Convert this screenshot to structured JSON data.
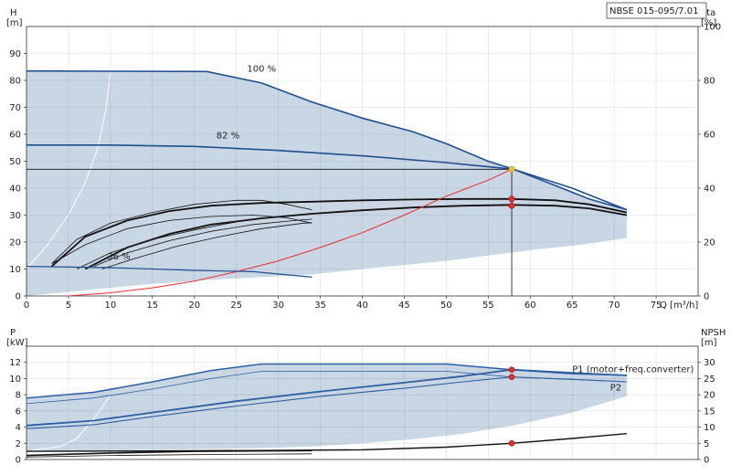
{
  "model_label": "NBSE 015-095/7.01",
  "chart_data": [
    {
      "id": "head",
      "type": "line",
      "xlabel": "Q [m³/h]",
      "ylabel_left": [
        "H",
        "[m]"
      ],
      "ylabel_right": [
        "eta",
        "[%]"
      ],
      "x_ticks": [
        0,
        5,
        10,
        15,
        20,
        25,
        30,
        35,
        40,
        45,
        50,
        55,
        60,
        65,
        70,
        75
      ],
      "y_ticks_left": [
        0,
        10,
        20,
        30,
        40,
        50,
        60,
        70,
        80,
        90
      ],
      "y_ticks_right": [
        0,
        20,
        40,
        60,
        80,
        100
      ],
      "xlim": [
        0,
        80
      ],
      "ylim_left": [
        0,
        100
      ],
      "ylim_right": [
        0,
        100
      ],
      "grid": true,
      "operating_region": {
        "upper": [
          [
            0,
            83.5
          ],
          [
            21.5,
            83.3
          ],
          [
            28,
            79
          ],
          [
            34,
            72
          ],
          [
            40,
            66
          ],
          [
            46,
            61
          ],
          [
            50,
            56.5
          ],
          [
            55,
            50
          ],
          [
            58,
            47
          ],
          [
            63,
            41
          ],
          [
            67,
            36
          ],
          [
            71.5,
            32
          ]
        ],
        "lower": [
          [
            71.5,
            21.5
          ],
          [
            66,
            19
          ],
          [
            60,
            17
          ],
          [
            55,
            15
          ],
          [
            50,
            13
          ],
          [
            45,
            11.5
          ],
          [
            40,
            10
          ],
          [
            34,
            8
          ],
          [
            28,
            7
          ],
          [
            22,
            6
          ],
          [
            15,
            4.5
          ],
          [
            10,
            3
          ],
          [
            5,
            1.5
          ],
          [
            0,
            0
          ]
        ],
        "boundary": [
          [
            10,
            83
          ],
          [
            9.5,
            70
          ],
          [
            8.5,
            55
          ],
          [
            7,
            42
          ],
          [
            5,
            30
          ],
          [
            2.5,
            19
          ],
          [
            0,
            10
          ]
        ]
      },
      "speed_curves": [
        {
          "label": "100 %",
          "points": [
            [
              0,
              83.5
            ],
            [
              21.5,
              83.3
            ],
            [
              28,
              79
            ],
            [
              34,
              72
            ],
            [
              40,
              66
            ],
            [
              46,
              61
            ],
            [
              50,
              56.5
            ],
            [
              55,
              50
            ],
            [
              58,
              47
            ],
            [
              63,
              41
            ],
            [
              67,
              36
            ],
            [
              71.5,
              32
            ]
          ]
        },
        {
          "label": "82 %",
          "points": [
            [
              0,
              56
            ],
            [
              10,
              56
            ],
            [
              20,
              55.5
            ],
            [
              30,
              54
            ],
            [
              40,
              52
            ],
            [
              50,
              49.5
            ],
            [
              58,
              47
            ],
            [
              65,
              40
            ],
            [
              71.5,
              32
            ]
          ]
        },
        {
          "label": "36 %",
          "points": [
            [
              0,
              11
            ],
            [
              10,
              10.5
            ],
            [
              20,
              9.5
            ],
            [
              27,
              9
            ],
            [
              34,
              7
            ]
          ]
        }
      ],
      "duty_line": {
        "H": 47,
        "Q": 57.8
      },
      "system_curve": [
        [
          5,
          0
        ],
        [
          10,
          1.2
        ],
        [
          15,
          3
        ],
        [
          20,
          5.5
        ],
        [
          25,
          9
        ],
        [
          30,
          13
        ],
        [
          35,
          18
        ],
        [
          40,
          23.5
        ],
        [
          45,
          30
        ],
        [
          50,
          37
        ],
        [
          55,
          43
        ],
        [
          57.8,
          47
        ]
      ],
      "efficiency_curves": [
        [
          [
            3,
            11
          ],
          [
            7,
            22
          ],
          [
            12,
            28
          ],
          [
            17,
            31.5
          ],
          [
            22,
            33.5
          ],
          [
            28,
            34.5
          ],
          [
            34,
            35
          ],
          [
            40,
            35.5
          ],
          [
            46,
            35.8
          ],
          [
            52,
            36
          ],
          [
            57.8,
            36
          ],
          [
            63,
            35.5
          ],
          [
            67,
            34
          ],
          [
            71.5,
            31
          ]
        ],
        [
          [
            7,
            10
          ],
          [
            12,
            18
          ],
          [
            17,
            23
          ],
          [
            22,
            26.5
          ],
          [
            28,
            28.8
          ],
          [
            34,
            30.5
          ],
          [
            40,
            31.8
          ],
          [
            46,
            32.8
          ],
          [
            52,
            33.5
          ],
          [
            57.8,
            33.8
          ],
          [
            63,
            33.5
          ],
          [
            67,
            32.5
          ],
          [
            71.5,
            30
          ]
        ],
        [
          [
            6,
            10
          ],
          [
            10,
            16
          ],
          [
            15,
            21
          ],
          [
            20,
            24.5
          ],
          [
            25,
            27.5
          ],
          [
            30,
            29.5
          ],
          [
            34,
            30.5
          ]
        ],
        [
          [
            3,
            12
          ],
          [
            7,
            19
          ],
          [
            12,
            25
          ],
          [
            17,
            28
          ],
          [
            22,
            29.5
          ],
          [
            27,
            30
          ],
          [
            31,
            29
          ],
          [
            34,
            27
          ]
        ],
        [
          [
            3,
            12
          ],
          [
            6,
            21
          ],
          [
            10,
            27
          ],
          [
            15,
            31
          ],
          [
            20,
            34
          ],
          [
            25,
            35.5
          ],
          [
            28,
            35.5
          ],
          [
            31,
            34
          ],
          [
            34,
            32
          ]
        ],
        [
          [
            8,
            11
          ],
          [
            12,
            16
          ],
          [
            17,
            20.5
          ],
          [
            22,
            24
          ],
          [
            27,
            26.5
          ],
          [
            32,
            28
          ],
          [
            34,
            28.5
          ]
        ],
        [
          [
            9,
            10
          ],
          [
            13,
            14
          ],
          [
            18,
            18.5
          ],
          [
            23,
            22
          ],
          [
            28,
            25
          ],
          [
            33,
            27
          ],
          [
            34,
            27.2
          ]
        ]
      ],
      "points": [
        {
          "Q": 57.8,
          "H": 47,
          "color": "#f2c230"
        },
        {
          "Q": 57.8,
          "H": 36,
          "color": "#e53030"
        },
        {
          "Q": 57.8,
          "H": 33.5,
          "color": "#e53030"
        }
      ]
    },
    {
      "id": "power",
      "type": "line",
      "xlabel": "",
      "ylabel_left": [
        "P",
        "[kW]"
      ],
      "ylabel_right": [
        "NPSH",
        "[m]"
      ],
      "y_ticks_left": [
        0,
        2,
        4,
        6,
        8,
        10,
        12
      ],
      "y_ticks_right": [
        0,
        5,
        10,
        15,
        20,
        25,
        30
      ],
      "xlim": [
        0,
        80
      ],
      "ylim_left": [
        0,
        14
      ],
      "ylim_right": [
        0,
        35
      ],
      "grid": true,
      "operating_region": {
        "upper": [
          [
            0,
            7.6
          ],
          [
            8,
            8.3
          ],
          [
            15,
            9.6
          ],
          [
            22,
            11
          ],
          [
            28,
            11.8
          ],
          [
            34,
            11.8
          ],
          [
            40,
            11.8
          ],
          [
            50,
            11.8
          ],
          [
            57.8,
            11.1
          ],
          [
            65,
            10.6
          ],
          [
            71.5,
            10.4
          ]
        ],
        "lower": [
          [
            71.5,
            7.8
          ],
          [
            65,
            5.8
          ],
          [
            58,
            4.2
          ],
          [
            52,
            3.2
          ],
          [
            46,
            2.5
          ],
          [
            40,
            2
          ],
          [
            34,
            1.6
          ],
          [
            28,
            1.4
          ],
          [
            22,
            1.3
          ],
          [
            15,
            1.2
          ],
          [
            8,
            1.1
          ],
          [
            0,
            1
          ]
        ],
        "boundary": [
          [
            10,
            7.9
          ],
          [
            8,
            5
          ],
          [
            6,
            2.6
          ],
          [
            4,
            1.6
          ],
          [
            0,
            1
          ]
        ]
      },
      "power_curves": [
        {
          "label": "P1 (motor+freq.converter)",
          "points": [
            [
              0,
              4.2
            ],
            [
              8,
              4.8
            ],
            [
              15,
              5.8
            ],
            [
              25,
              7.2
            ],
            [
              35,
              8.4
            ],
            [
              45,
              9.5
            ],
            [
              52,
              10.3
            ],
            [
              57.8,
              11.1
            ],
            [
              65,
              10.7
            ],
            [
              71.5,
              10.4
            ]
          ]
        },
        {
          "label": "P2",
          "points": [
            [
              0,
              3.8
            ],
            [
              8,
              4.3
            ],
            [
              15,
              5.3
            ],
            [
              25,
              6.6
            ],
            [
              35,
              7.8
            ],
            [
              45,
              8.8
            ],
            [
              52,
              9.6
            ],
            [
              57.8,
              10.2
            ],
            [
              65,
              9.9
            ],
            [
              71.5,
              9.6
            ]
          ]
        },
        {
          "label": "",
          "points": [
            [
              0,
              7.6
            ],
            [
              8,
              8.3
            ],
            [
              15,
              9.6
            ],
            [
              22,
              11
            ],
            [
              28,
              11.8
            ],
            [
              34,
              11.8
            ],
            [
              40,
              11.8
            ],
            [
              50,
              11.8
            ],
            [
              57.8,
              11.1
            ],
            [
              65,
              10.6
            ],
            [
              71.5,
              10.4
            ]
          ]
        },
        {
          "label": "",
          "points": [
            [
              0,
              6.9
            ],
            [
              8,
              7.6
            ],
            [
              15,
              8.7
            ],
            [
              22,
              10
            ],
            [
              28,
              10.9
            ],
            [
              34,
              10.9
            ],
            [
              40,
              10.9
            ],
            [
              50,
              10.9
            ],
            [
              57.8,
              10.2
            ],
            [
              65,
              9.9
            ],
            [
              71.5,
              9.6
            ]
          ]
        },
        {
          "label": "",
          "points": [
            [
              0,
              0.5
            ],
            [
              10,
              0.8
            ],
            [
              20,
              1
            ],
            [
              34,
              1.1
            ]
          ]
        },
        {
          "label": "",
          "points": [
            [
              0,
              0.3
            ],
            [
              10,
              0.5
            ],
            [
              20,
              0.6
            ],
            [
              34,
              0.7
            ]
          ]
        }
      ],
      "npsh_curve": [
        [
          0,
          2.5
        ],
        [
          10,
          2.6
        ],
        [
          20,
          2.7
        ],
        [
          30,
          2.8
        ],
        [
          40,
          3
        ],
        [
          50,
          3.8
        ],
        [
          57.8,
          5
        ],
        [
          65,
          6.5
        ],
        [
          71.5,
          8
        ]
      ],
      "points": [
        {
          "Q": 57.8,
          "P": 11.1,
          "color": "#e53030"
        },
        {
          "Q": 57.8,
          "P": 10.2,
          "color": "#e53030"
        },
        {
          "Q": 57.8,
          "P": 2,
          "color": "#e53030"
        }
      ]
    }
  ]
}
